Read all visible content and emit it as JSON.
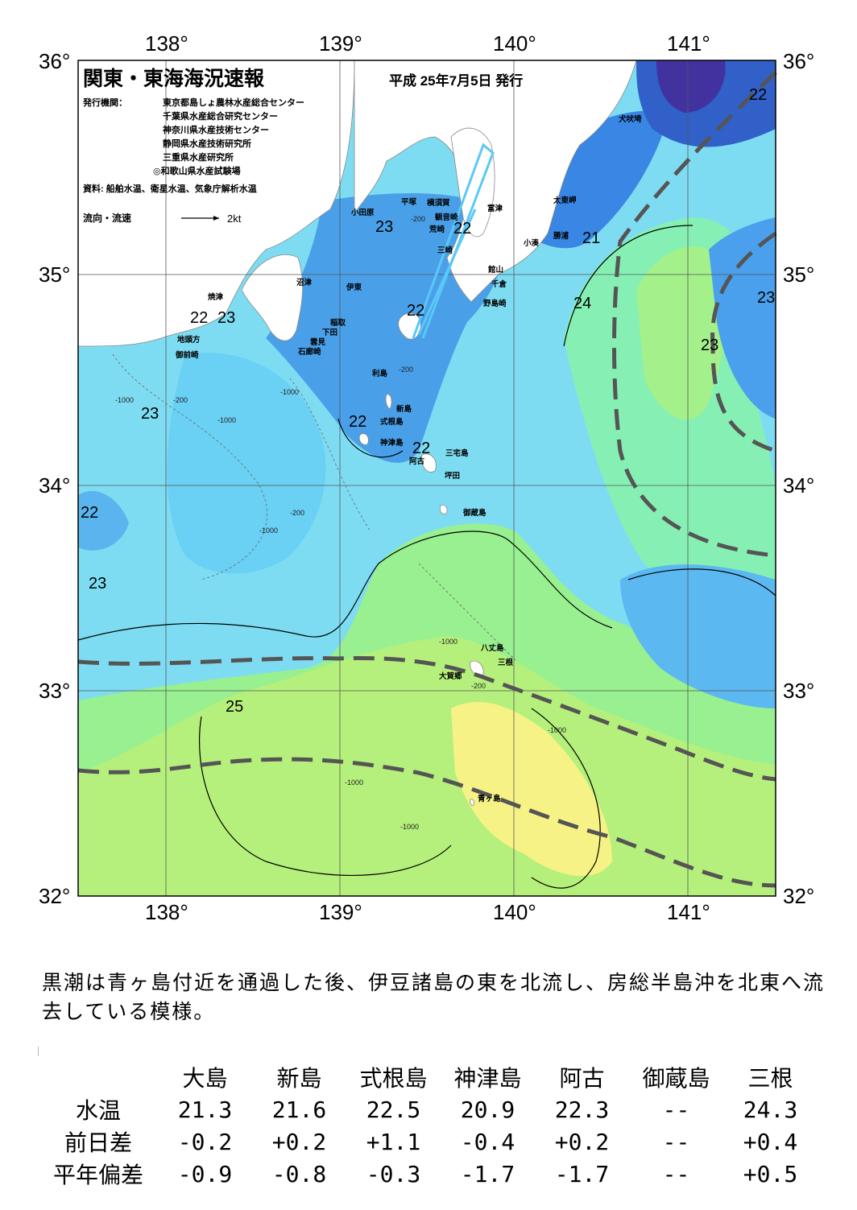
{
  "title": "関東・東海海況速報",
  "date": "平成 25年7月5日 発行",
  "publisher_label": "発行機関：",
  "publishers": [
    "東京都島しょ農林水産総合センター",
    "千葉県水産総合研究センター",
    "神奈川県水産技術センター",
    "静岡県水産技術研究所",
    "三重県水産研究所",
    "◎和歌山県水産試験場"
  ],
  "sources": "資料: 船舶水温、衛星水温、気象庁解析水温",
  "legend": {
    "label": "流向・流速",
    "speed": "2kt"
  },
  "lon_labels": [
    "138°",
    "139°",
    "140°",
    "141°"
  ],
  "lat_labels": [
    "36°",
    "35°",
    "34°",
    "33°",
    "32°"
  ],
  "contour_labels": [
    "22",
    "22",
    "22",
    "22",
    "22",
    "22",
    "22",
    "21",
    "23",
    "23",
    "23",
    "23",
    "23",
    "23",
    "24",
    "25"
  ],
  "depth_labels": [
    "-200",
    "-200",
    "-200",
    "-200",
    "-200",
    "-1000",
    "-1000",
    "-1000",
    "-1000",
    "-1000",
    "-1000",
    "-1000",
    "-1000"
  ],
  "place_names": [
    "犬吠埼",
    "太東岬",
    "勝浦",
    "小湊",
    "富津",
    "横須賀",
    "観音崎",
    "平塚",
    "小田原",
    "荒崎",
    "三崎",
    "館山",
    "千倉",
    "野島崎",
    "沼津",
    "伊東",
    "焼津",
    "稲取",
    "下田",
    "雲見",
    "石廊崎",
    "地頭方",
    "御前崎",
    "利島",
    "新島",
    "式根島",
    "神津島",
    "三宅島",
    "阿古",
    "坪田",
    "御蔵島",
    "八丈島",
    "三根",
    "大賀郷",
    "青ヶ島"
  ],
  "summary": "黒潮は青ヶ島付近を通過した後、伊豆諸島の東を北流し、房総半島沖を北東へ流去している模様。",
  "table": {
    "columns": [
      "大島",
      "新島",
      "式根島",
      "神津島",
      "阿古",
      "御蔵島",
      "三根"
    ],
    "rows": [
      {
        "label": "水温",
        "values": [
          "21.3",
          "21.6",
          "22.5",
          "20.9",
          "22.3",
          "--",
          "24.3"
        ]
      },
      {
        "label": "前日差",
        "values": [
          "-0.2",
          "+0.2",
          "+1.1",
          "-0.4",
          "+0.2",
          "--",
          "+0.4"
        ]
      },
      {
        "label": "平年偏差",
        "values": [
          "-0.9",
          "-0.8",
          "-0.3",
          "-1.7",
          "-1.7",
          "--",
          "+0.5"
        ]
      }
    ]
  },
  "colors": {
    "t21": "#4a3aa8",
    "t22": "#3a8ee8",
    "t22b": "#5ab0f0",
    "t23": "#78dcf4",
    "t23b": "#80ecf0",
    "t24": "#84f0c0",
    "t24b": "#98f090",
    "t25": "#c4f07c",
    "t26": "#f8f484",
    "land": "#ffffff",
    "kuroshio": "#555555"
  }
}
